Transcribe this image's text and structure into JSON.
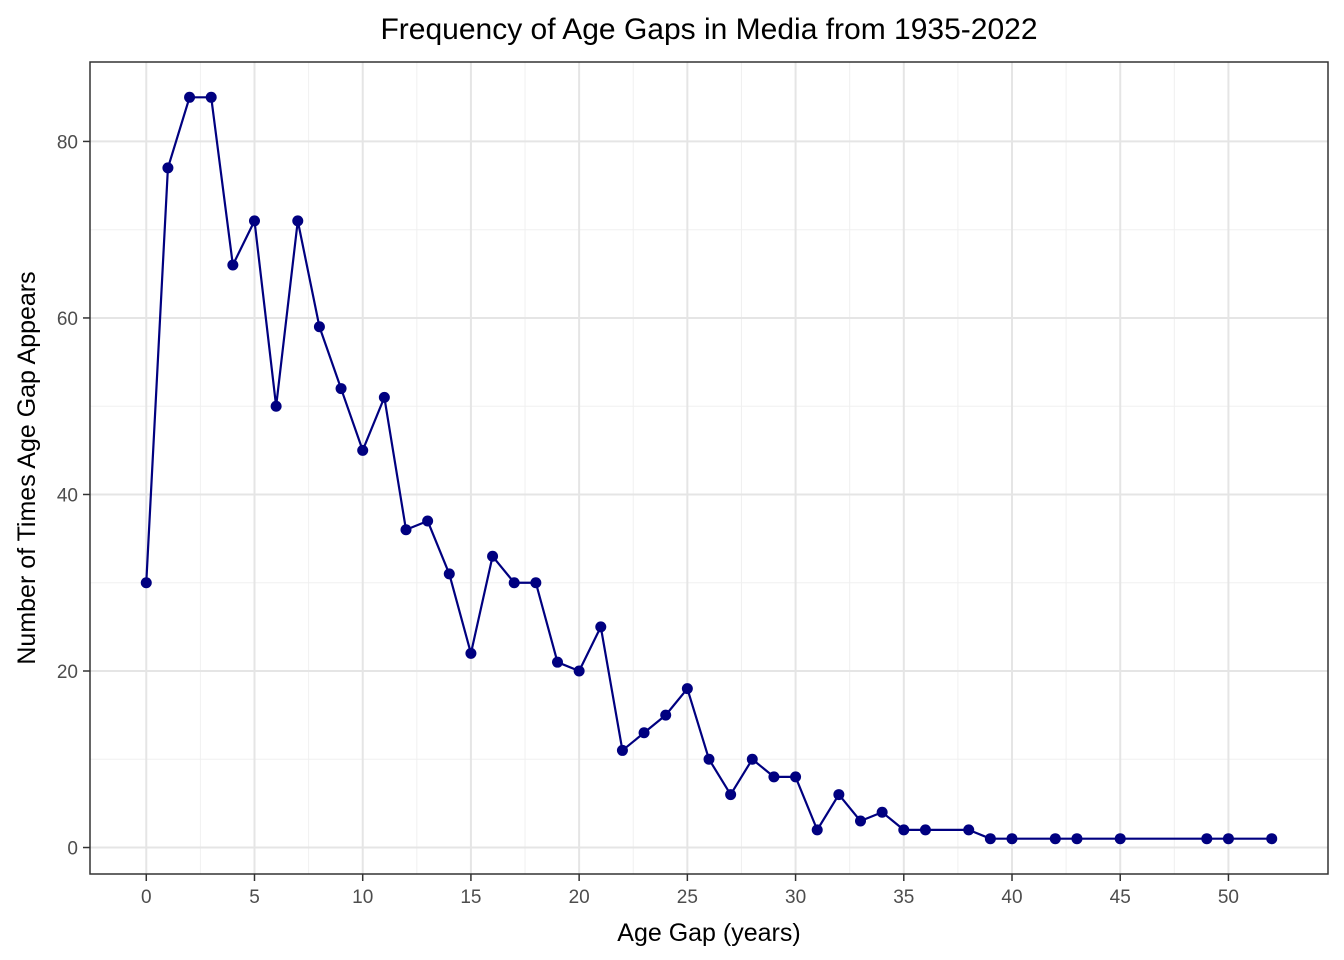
{
  "chart_data": {
    "type": "line",
    "title": "Frequency of Age Gaps in Media from 1935-2022",
    "xlabel": "Age Gap (years)",
    "ylabel": "Number of Times Age Gap Appears",
    "xlim": [
      -2.6,
      54.6
    ],
    "ylim": [
      -3,
      89
    ],
    "x_ticks": [
      0,
      5,
      10,
      15,
      20,
      25,
      30,
      35,
      40,
      45,
      50
    ],
    "y_ticks": [
      0,
      20,
      40,
      60,
      80
    ],
    "grid": true,
    "series_color": "#000080",
    "points": [
      {
        "x": 0,
        "y": 30
      },
      {
        "x": 1,
        "y": 77
      },
      {
        "x": 2,
        "y": 85
      },
      {
        "x": 3,
        "y": 85
      },
      {
        "x": 4,
        "y": 66
      },
      {
        "x": 5,
        "y": 71
      },
      {
        "x": 6,
        "y": 50
      },
      {
        "x": 7,
        "y": 71
      },
      {
        "x": 8,
        "y": 59
      },
      {
        "x": 9,
        "y": 52
      },
      {
        "x": 10,
        "y": 45
      },
      {
        "x": 11,
        "y": 51
      },
      {
        "x": 12,
        "y": 36
      },
      {
        "x": 13,
        "y": 37
      },
      {
        "x": 14,
        "y": 31
      },
      {
        "x": 15,
        "y": 22
      },
      {
        "x": 16,
        "y": 33
      },
      {
        "x": 17,
        "y": 30
      },
      {
        "x": 18,
        "y": 30
      },
      {
        "x": 19,
        "y": 21
      },
      {
        "x": 20,
        "y": 20
      },
      {
        "x": 21,
        "y": 25
      },
      {
        "x": 22,
        "y": 11
      },
      {
        "x": 23,
        "y": 13
      },
      {
        "x": 24,
        "y": 15
      },
      {
        "x": 25,
        "y": 18
      },
      {
        "x": 26,
        "y": 10
      },
      {
        "x": 27,
        "y": 6
      },
      {
        "x": 28,
        "y": 10
      },
      {
        "x": 29,
        "y": 8
      },
      {
        "x": 30,
        "y": 8
      },
      {
        "x": 31,
        "y": 2
      },
      {
        "x": 32,
        "y": 6
      },
      {
        "x": 33,
        "y": 3
      },
      {
        "x": 34,
        "y": 4
      },
      {
        "x": 35,
        "y": 2
      },
      {
        "x": 36,
        "y": 2
      },
      {
        "x": 38,
        "y": 2
      },
      {
        "x": 39,
        "y": 1
      },
      {
        "x": 40,
        "y": 1
      },
      {
        "x": 42,
        "y": 1
      },
      {
        "x": 43,
        "y": 1
      },
      {
        "x": 45,
        "y": 1
      },
      {
        "x": 49,
        "y": 1
      },
      {
        "x": 50,
        "y": 1
      },
      {
        "x": 52,
        "y": 1
      }
    ]
  }
}
